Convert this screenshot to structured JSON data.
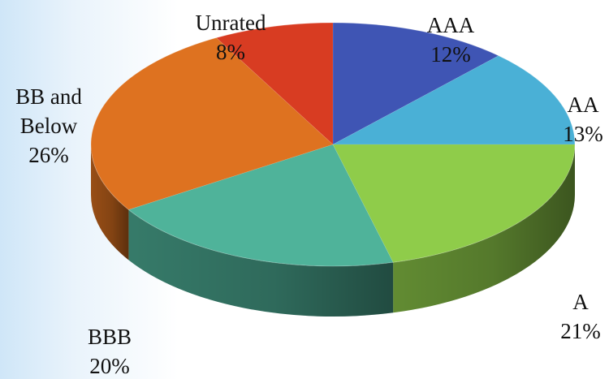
{
  "chart_data": {
    "type": "pie",
    "style": "3d",
    "title": "",
    "legend": "none",
    "series": [
      {
        "values": [
          12,
          13,
          21,
          20,
          26,
          8
        ],
        "categories": [
          "AAA",
          "AA",
          "A",
          "BBB",
          "BB and Below",
          "Unrated"
        ],
        "colors": [
          "#3f55b4",
          "#4ab0d6",
          "#8fcc4a",
          "#4fb39a",
          "#de7220",
          "#d83c22"
        ]
      }
    ],
    "data_labels": [
      {
        "lines": [
          "AAA",
          "12%"
        ]
      },
      {
        "lines": [
          "AA",
          "13%"
        ]
      },
      {
        "lines": [
          "A",
          "21%"
        ]
      },
      {
        "lines": [
          "BBB",
          "20%"
        ]
      },
      {
        "lines": [
          "BB and",
          "Below",
          "26%"
        ]
      },
      {
        "lines": [
          "Unrated",
          "8%"
        ]
      }
    ]
  }
}
